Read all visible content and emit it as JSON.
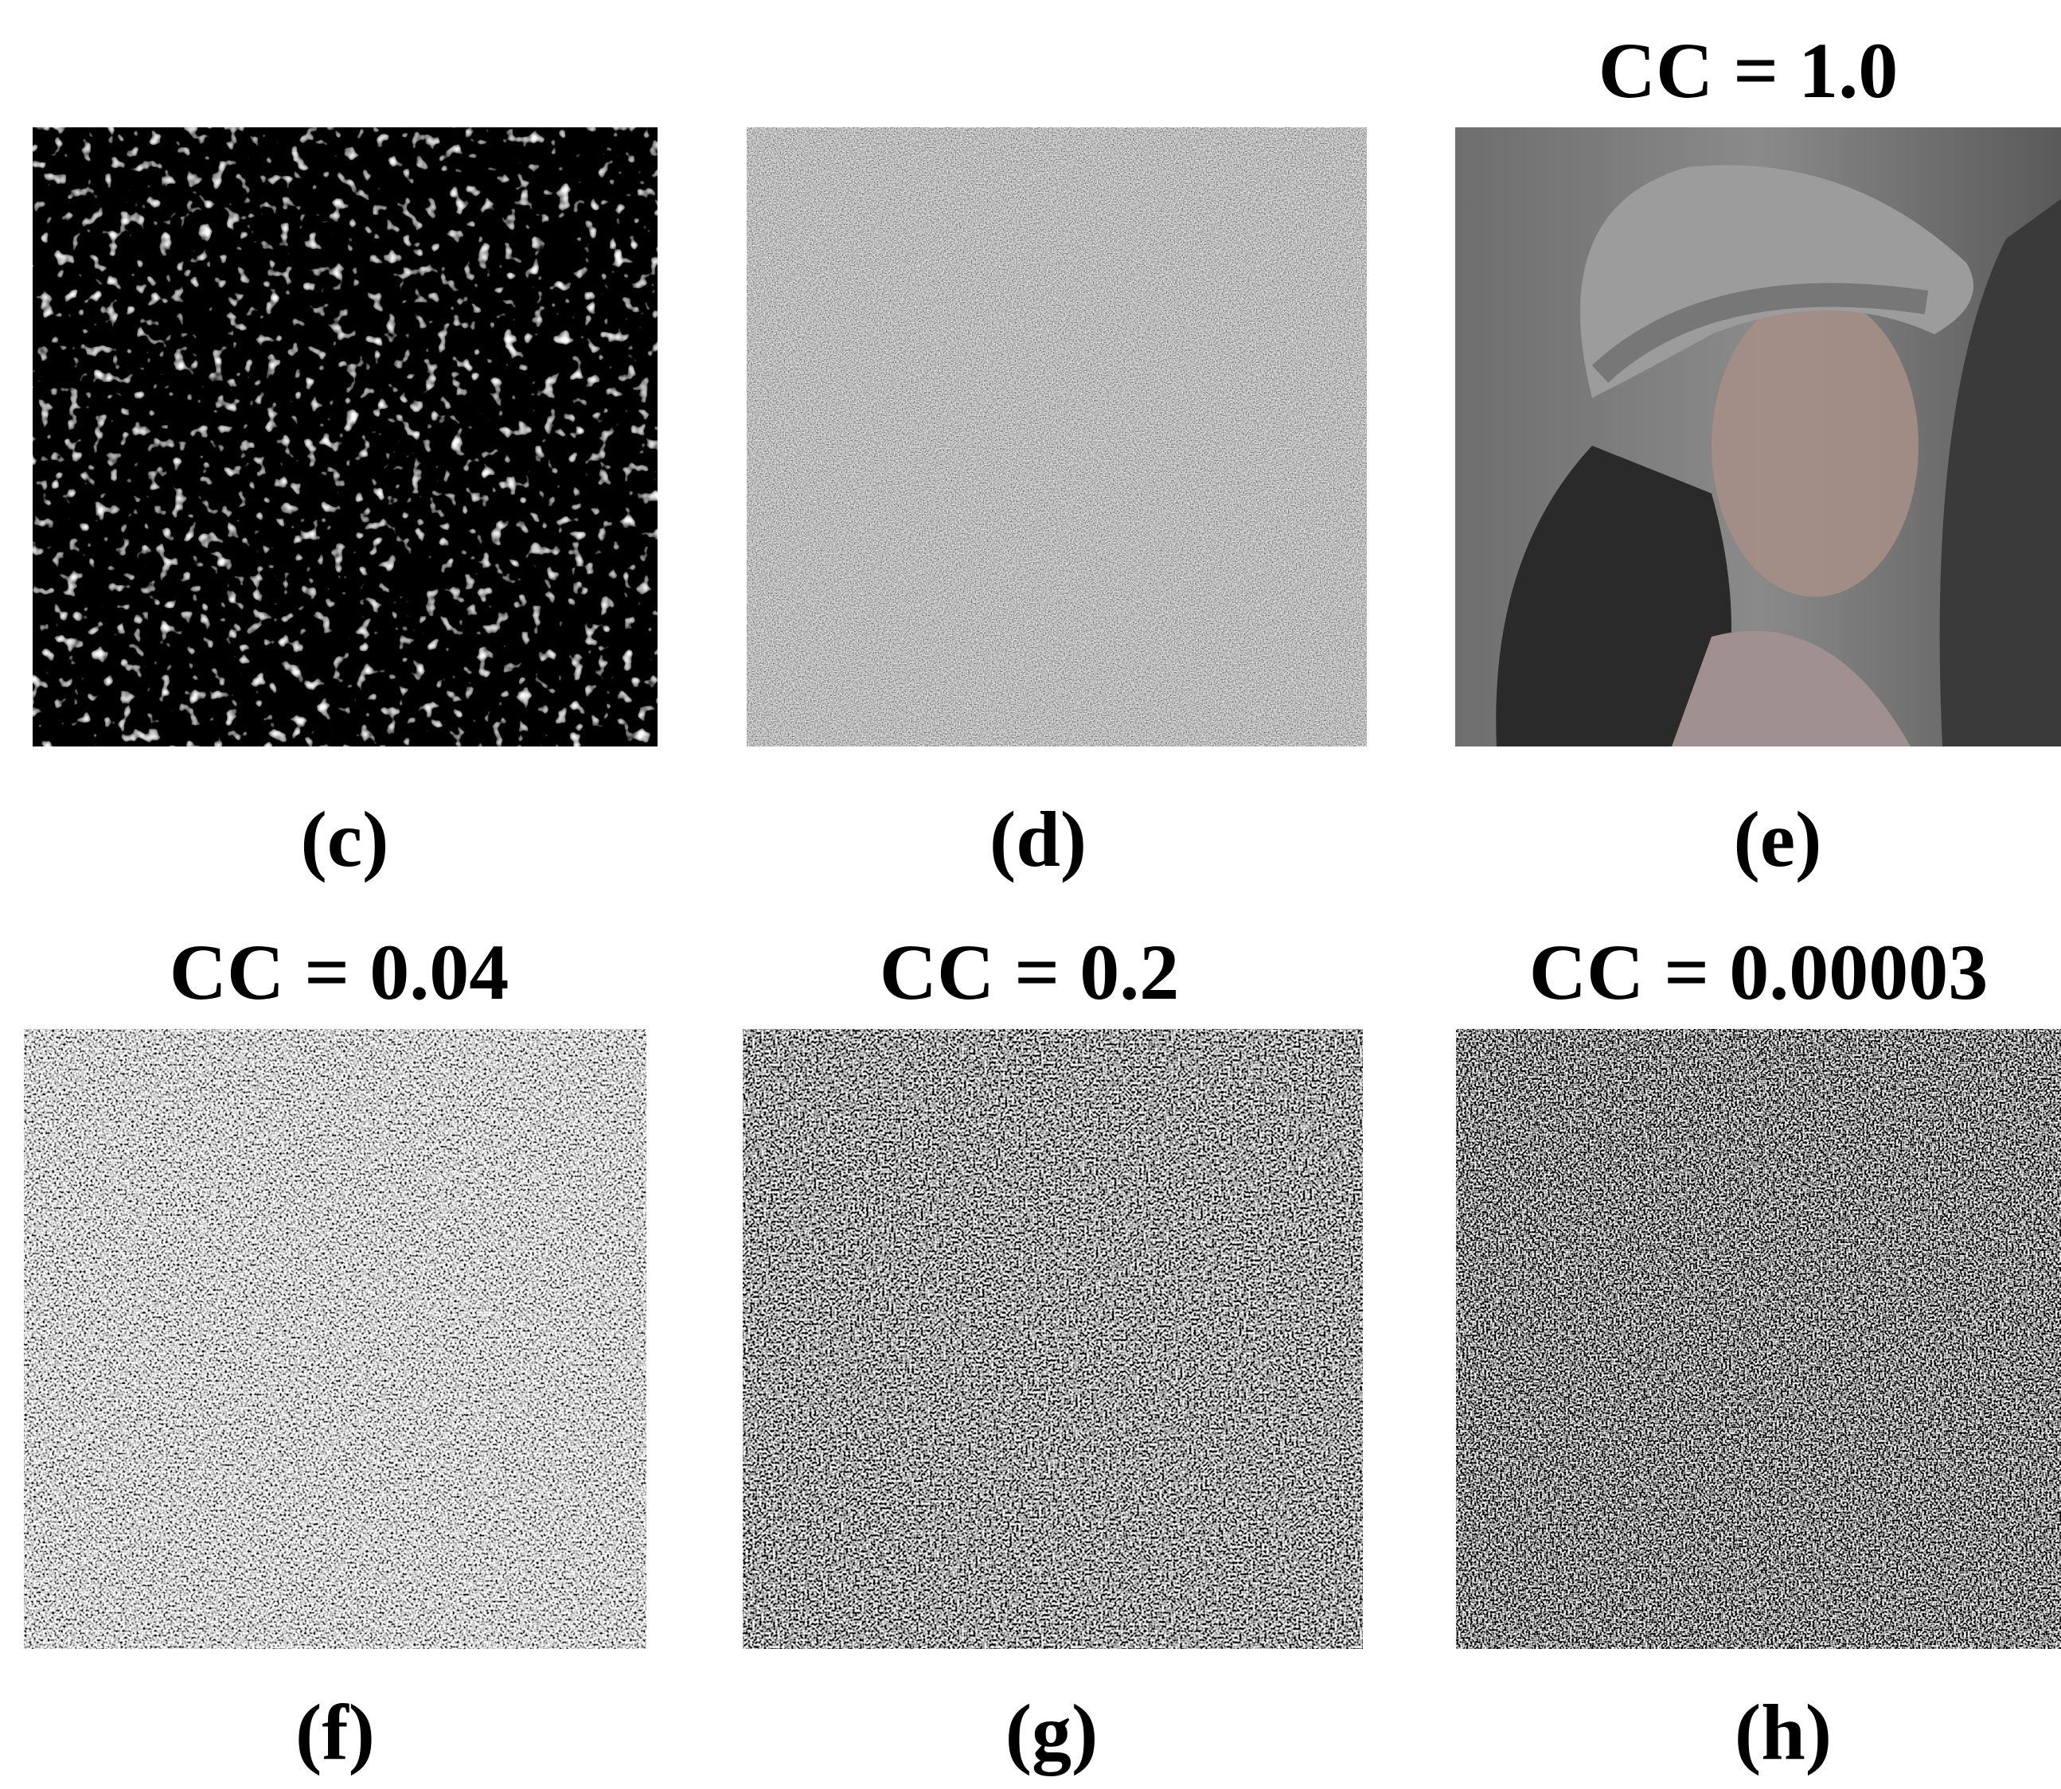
{
  "panels": [
    {
      "label": "(c)"
    },
    {
      "label": "(d)"
    },
    {
      "label": "(e)",
      "title": "CC = 1.0"
    },
    {
      "label": "(f)",
      "title": "CC = 0.04"
    },
    {
      "label": "(g)",
      "title": "CC = 0.2"
    },
    {
      "label": "(h)",
      "title": "CC = 0.00003"
    }
  ]
}
